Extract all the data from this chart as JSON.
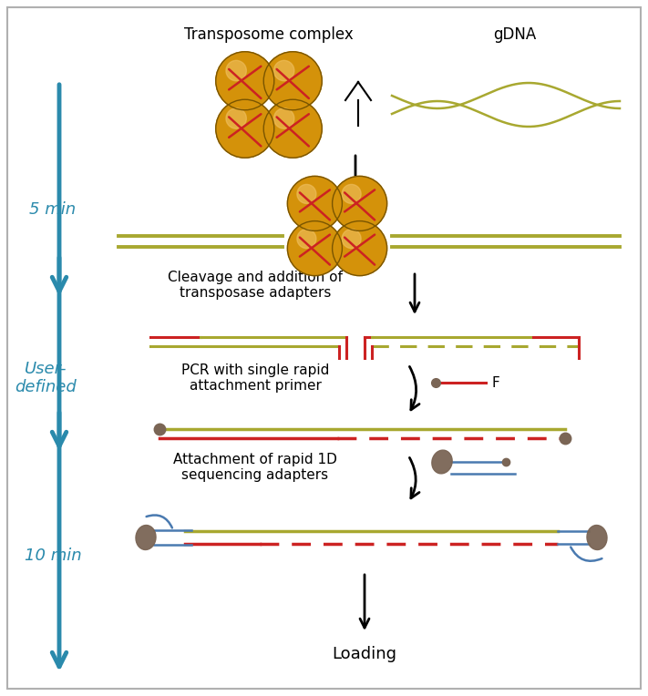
{
  "bg_color": "#ffffff",
  "border_color": "#b0b0b0",
  "arrow_color": "#2a8aac",
  "text_color": "#000000",
  "gold_color": "#d4920a",
  "gold_dark": "#7a5500",
  "red_color": "#cc2222",
  "olive_color": "#a8a830",
  "brown_color": "#7a6555",
  "blue_color": "#4a7ab0",
  "step_labels": [
    "5 min",
    "User-\ndefined",
    "10 min"
  ],
  "step_label_color": "#2a8aac",
  "labels": {
    "transposome": "Transposome complex",
    "gdna": "gDNA",
    "cleavage": "Cleavage and addition of\ntransposase adapters",
    "pcr": "PCR with single rapid\nattachment primer",
    "attachment": "Attachment of rapid 1D\nsequencing adapters",
    "loading": "Loading",
    "f_label": "F"
  }
}
